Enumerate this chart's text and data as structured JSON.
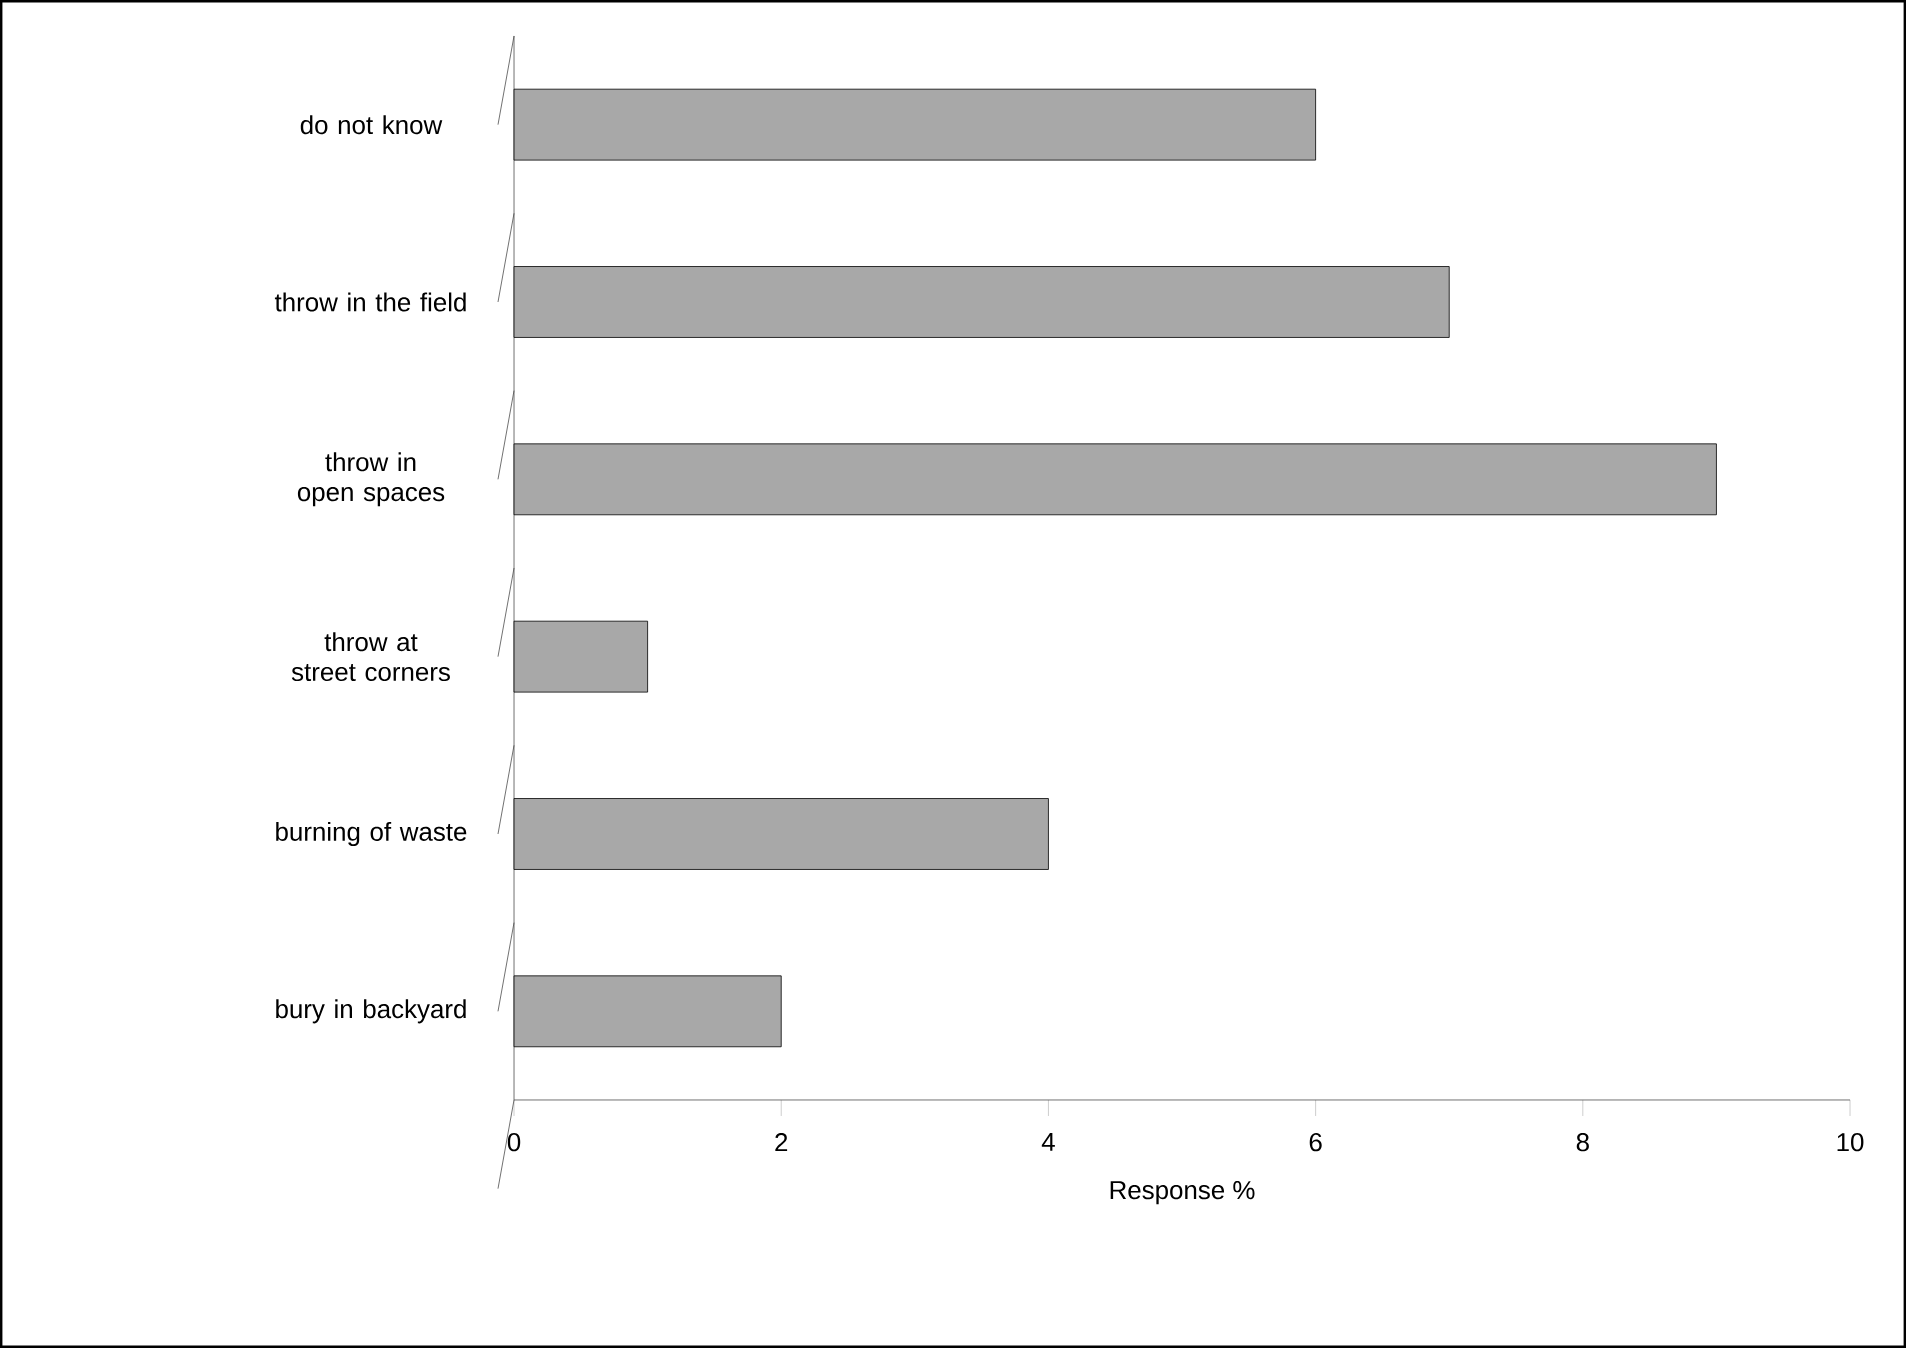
{
  "chart_data": {
    "type": "bar",
    "orientation": "horizontal",
    "xlabel": "Response %",
    "categories": [
      "do not know",
      "throw in the field",
      "throw in open spaces",
      "throw at street corners",
      "burning of waste",
      "bury in backyard"
    ],
    "values": [
      6,
      7,
      9,
      1,
      4,
      2
    ],
    "color": "#a8a8a8",
    "xlim": [
      0,
      10
    ],
    "xticks": [
      0,
      2,
      4,
      6,
      8,
      10
    ],
    "grid": false
  }
}
